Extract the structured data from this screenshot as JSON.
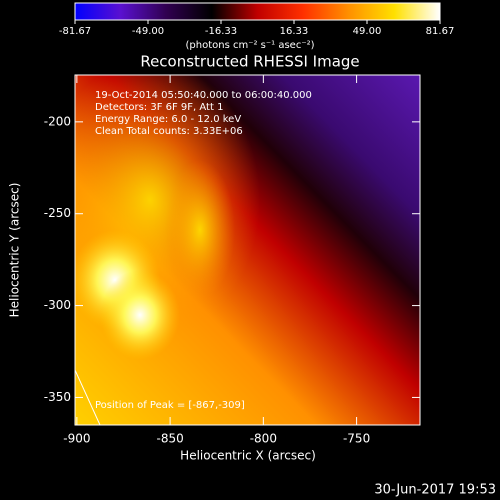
{
  "chart_data": {
    "type": "heatmap",
    "title": "Reconstructed RHESSI Image",
    "xlabel": "Heliocentric X (arcsec)",
    "ylabel": "Heliocentric Y (arcsec)",
    "xlim": [
      -901,
      -716
    ],
    "xticks": [
      -900,
      -850,
      -800,
      -750
    ],
    "ylim": [
      -365,
      -174.5
    ],
    "yticks": [
      -200,
      -250,
      -300,
      -350
    ],
    "colorbar": {
      "label": "(photons cm⁻² s⁻¹ asec⁻²)",
      "lim": [
        -81.67,
        81.67
      ],
      "ticks": [
        -81.67,
        {
          "value": -49,
          "label": "-49.00"
        },
        -16.33,
        16.33,
        {
          "value": 49,
          "label": "49.00"
        },
        81.67
      ],
      "colormap": [
        "#0000ff",
        "#5a10d0",
        "#300050",
        "#000000",
        "#c00000",
        "#ff3000",
        "#ff9000",
        "#ffe000",
        "#ffffff"
      ]
    },
    "annotations": [
      "19-Oct-2014 05:50:40.000 to 06:00:40.000",
      "Detectors: 3F 6F 9F, Att 1",
      "Energy Range: 6.0 - 12.0 keV",
      "Clean     Total counts: 3.33E+06"
    ],
    "peak_label": "Position of Peak = [-867,-309]",
    "timestamp": "30-Jun-2017 19:53"
  }
}
